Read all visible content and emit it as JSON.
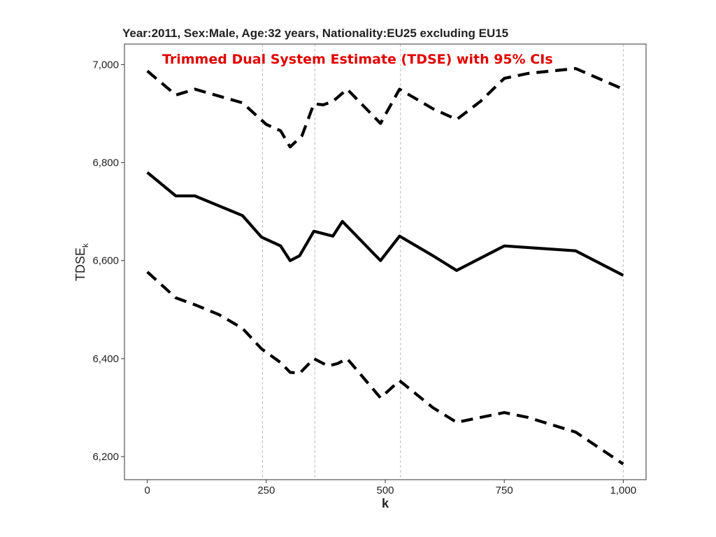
{
  "chart_data": {
    "type": "line",
    "title": "Year:2011, Sex:Male, Age:32 years, Nationality:EU25 excluding EU15",
    "annotation": "Trimmed Dual System Estimate (TDSE) with 95% CIs",
    "xlabel": "k",
    "ylabel_main": "TDSE",
    "ylabel_sub": "k",
    "xlim": [
      -48,
      1048
    ],
    "ylim": [
      6153,
      7042
    ],
    "x_ticks": [
      0,
      250,
      500,
      750,
      1000
    ],
    "x_tick_labels": [
      "0",
      "250",
      "500",
      "750",
      "1,000"
    ],
    "y_ticks": [
      6200,
      6400,
      6600,
      6800,
      7000
    ],
    "y_tick_labels": [
      "6,200",
      "6,400",
      "6,600",
      "6,800",
      "7,000"
    ],
    "vlines": [
      242,
      352,
      532,
      1000
    ],
    "grid": "dashed vertical reference lines",
    "colors": {
      "line": "#000000",
      "annotation": "#e00000",
      "vline": "#bbbbbb"
    },
    "series": [
      {
        "style": "dashed",
        "x": [
          0,
          60,
          100,
          200,
          250,
          280,
          300,
          325,
          350,
          370,
          390,
          420,
          490,
          530,
          600,
          650,
          700,
          750,
          800,
          900,
          1000
        ],
        "y": [
          6987,
          6938,
          6950,
          6922,
          6878,
          6865,
          6832,
          6855,
          6920,
          6918,
          6925,
          6950,
          6880,
          6950,
          6910,
          6888,
          6925,
          6972,
          6982,
          6992,
          6950
        ]
      },
      {
        "style": "solid",
        "x": [
          0,
          60,
          100,
          200,
          240,
          280,
          300,
          320,
          350,
          390,
          410,
          490,
          530,
          600,
          650,
          700,
          750,
          900,
          1000
        ],
        "y": [
          6780,
          6732,
          6732,
          6692,
          6648,
          6630,
          6600,
          6610,
          6660,
          6650,
          6680,
          6600,
          6650,
          6610,
          6580,
          6605,
          6630,
          6620,
          6570
        ]
      },
      {
        "style": "dashed",
        "x": [
          0,
          60,
          100,
          150,
          200,
          240,
          280,
          300,
          320,
          350,
          380,
          400,
          420,
          490,
          530,
          600,
          650,
          700,
          750,
          800,
          900,
          1000
        ],
        "y": [
          6577,
          6524,
          6510,
          6490,
          6462,
          6420,
          6392,
          6372,
          6370,
          6400,
          6385,
          6390,
          6400,
          6320,
          6355,
          6300,
          6270,
          6280,
          6290,
          6280,
          6250,
          6185
        ]
      }
    ]
  }
}
